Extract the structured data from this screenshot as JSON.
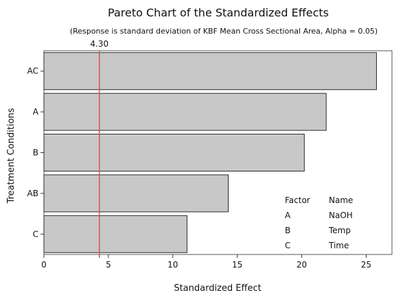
{
  "chart_data": {
    "type": "bar",
    "orientation": "horizontal",
    "title": "Pareto Chart of the Standardized Effects",
    "subtitle": "(Response is standard deviation of KBF Mean Cross Sectional Area, Alpha = 0.05)",
    "xlabel": "Standardized Effect",
    "ylabel": "Treatment Conditions",
    "categories": [
      "AC",
      "A",
      "B",
      "AB",
      "C"
    ],
    "values": [
      25.8,
      21.9,
      20.2,
      14.3,
      11.1
    ],
    "xlim": [
      0,
      27
    ],
    "xticks": [
      0,
      5,
      10,
      15,
      20,
      25
    ],
    "reference_line": {
      "value": 4.3,
      "label": "4.30",
      "color": "#d9534f"
    },
    "bar_color": "#c8c8c8",
    "grid": false,
    "legend": {
      "placement": "bottom-right",
      "headers": [
        "Factor",
        "Name"
      ],
      "rows": [
        {
          "factor": "A",
          "name": "NaOH"
        },
        {
          "factor": "B",
          "name": "Temp"
        },
        {
          "factor": "C",
          "name": "Time"
        }
      ]
    }
  }
}
